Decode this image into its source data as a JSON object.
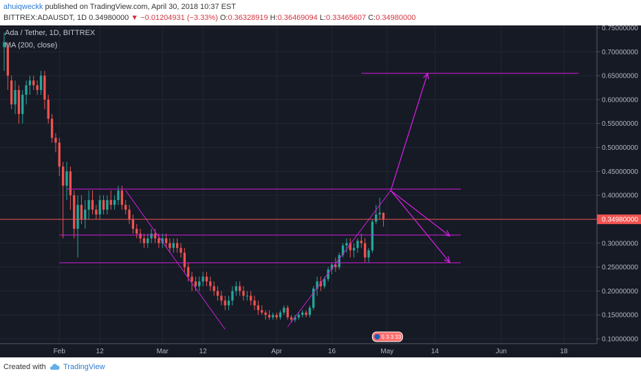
{
  "header": {
    "author": "ahuiqweckk",
    "published_text": "published on TradingView.com, April 30, 2018 10:37 EST",
    "symbol": "BITTREX:ADAUSDT, 1D",
    "last": "0.34980000",
    "change": "−0.01204931 (−3.33%)",
    "o_label": "O:",
    "o": "0.36328919",
    "h_label": "H:",
    "h": "0.36469094",
    "l_label": "L:",
    "l": "0.33465607",
    "c_label": "C:",
    "c": "0.34980000"
  },
  "legend": {
    "title": "Ada / Tether, 1D, BITTREX",
    "indicator": "MA (200, close)"
  },
  "price_badge": "0.34980000",
  "event_badge": "5 3 3 33",
  "footer": {
    "created_with": "Created with",
    "brand": "TradingView"
  },
  "colors": {
    "background": "#161a25",
    "up": "#26a69a",
    "down": "#ef5350",
    "drawing": "#d21ede",
    "price_line": "#ef5350"
  },
  "chart_data": {
    "type": "candlestick",
    "y_axis": {
      "ticks": [
        "0.75000000",
        "0.70000000",
        "0.65000000",
        "0.60000000",
        "0.55000000",
        "0.50000000",
        "0.45000000",
        "0.40000000",
        "0.35000000",
        "0.30000000",
        "0.25000000",
        "0.20000000",
        "0.15000000",
        "0.10000000"
      ],
      "ylim": [
        0.09,
        0.755
      ]
    },
    "x_axis": {
      "ticks": [
        {
          "label": "Feb",
          "date": "2018-02-01"
        },
        {
          "label": "12",
          "date": "2018-02-12"
        },
        {
          "label": "Mar",
          "date": "2018-03-01"
        },
        {
          "label": "12",
          "date": "2018-03-12"
        },
        {
          "label": "Apr",
          "date": "2018-04-01"
        },
        {
          "label": "16",
          "date": "2018-04-16"
        },
        {
          "label": "May",
          "date": "2018-05-01"
        },
        {
          "label": "14",
          "date": "2018-05-14"
        },
        {
          "label": "Jun",
          "date": "2018-06-01"
        },
        {
          "label": "18",
          "date": "2018-06-18"
        }
      ],
      "xlim": [
        "2018-01-17",
        "2018-06-27"
      ]
    },
    "candles": [
      {
        "d": "2018-01-17",
        "o": 0.71,
        "h": 0.74,
        "l": 0.66,
        "c": 0.72
      },
      {
        "d": "2018-01-18",
        "o": 0.71,
        "h": 0.72,
        "l": 0.62,
        "c": 0.65
      },
      {
        "d": "2018-01-19",
        "o": 0.64,
        "h": 0.65,
        "l": 0.58,
        "c": 0.59
      },
      {
        "d": "2018-01-20",
        "o": 0.59,
        "h": 0.64,
        "l": 0.57,
        "c": 0.62
      },
      {
        "d": "2018-01-21",
        "o": 0.62,
        "h": 0.63,
        "l": 0.55,
        "c": 0.57
      },
      {
        "d": "2018-01-22",
        "o": 0.57,
        "h": 0.62,
        "l": 0.55,
        "c": 0.61
      },
      {
        "d": "2018-01-23",
        "o": 0.61,
        "h": 0.64,
        "l": 0.59,
        "c": 0.63
      },
      {
        "d": "2018-01-24",
        "o": 0.63,
        "h": 0.65,
        "l": 0.61,
        "c": 0.64
      },
      {
        "d": "2018-01-25",
        "o": 0.64,
        "h": 0.65,
        "l": 0.62,
        "c": 0.63
      },
      {
        "d": "2018-01-26",
        "o": 0.63,
        "h": 0.64,
        "l": 0.61,
        "c": 0.62
      },
      {
        "d": "2018-01-27",
        "o": 0.62,
        "h": 0.66,
        "l": 0.61,
        "c": 0.65
      },
      {
        "d": "2018-01-28",
        "o": 0.65,
        "h": 0.66,
        "l": 0.58,
        "c": 0.6
      },
      {
        "d": "2018-01-29",
        "o": 0.6,
        "h": 0.61,
        "l": 0.55,
        "c": 0.56
      },
      {
        "d": "2018-01-30",
        "o": 0.56,
        "h": 0.57,
        "l": 0.51,
        "c": 0.52
      },
      {
        "d": "2018-01-31",
        "o": 0.52,
        "h": 0.53,
        "l": 0.49,
        "c": 0.51
      },
      {
        "d": "2018-02-01",
        "o": 0.51,
        "h": 0.52,
        "l": 0.44,
        "c": 0.46
      },
      {
        "d": "2018-02-02",
        "o": 0.46,
        "h": 0.47,
        "l": 0.31,
        "c": 0.42
      },
      {
        "d": "2018-02-03",
        "o": 0.42,
        "h": 0.47,
        "l": 0.39,
        "c": 0.45
      },
      {
        "d": "2018-02-04",
        "o": 0.45,
        "h": 0.46,
        "l": 0.37,
        "c": 0.4
      },
      {
        "d": "2018-02-05",
        "o": 0.4,
        "h": 0.41,
        "l": 0.31,
        "c": 0.33
      },
      {
        "d": "2018-02-06",
        "o": 0.33,
        "h": 0.4,
        "l": 0.27,
        "c": 0.38
      },
      {
        "d": "2018-02-07",
        "o": 0.38,
        "h": 0.4,
        "l": 0.34,
        "c": 0.35
      },
      {
        "d": "2018-02-08",
        "o": 0.35,
        "h": 0.39,
        "l": 0.33,
        "c": 0.37
      },
      {
        "d": "2018-02-09",
        "o": 0.37,
        "h": 0.41,
        "l": 0.35,
        "c": 0.39
      },
      {
        "d": "2018-02-10",
        "o": 0.39,
        "h": 0.41,
        "l": 0.36,
        "c": 0.37
      },
      {
        "d": "2018-02-11",
        "o": 0.37,
        "h": 0.38,
        "l": 0.35,
        "c": 0.36
      },
      {
        "d": "2018-02-12",
        "o": 0.36,
        "h": 0.4,
        "l": 0.35,
        "c": 0.39
      },
      {
        "d": "2018-02-13",
        "o": 0.39,
        "h": 0.4,
        "l": 0.36,
        "c": 0.37
      },
      {
        "d": "2018-02-14",
        "o": 0.37,
        "h": 0.4,
        "l": 0.36,
        "c": 0.39
      },
      {
        "d": "2018-02-15",
        "o": 0.39,
        "h": 0.41,
        "l": 0.37,
        "c": 0.38
      },
      {
        "d": "2018-02-16",
        "o": 0.38,
        "h": 0.4,
        "l": 0.37,
        "c": 0.39
      },
      {
        "d": "2018-02-17",
        "o": 0.39,
        "h": 0.42,
        "l": 0.38,
        "c": 0.41
      },
      {
        "d": "2018-02-18",
        "o": 0.41,
        "h": 0.42,
        "l": 0.37,
        "c": 0.38
      },
      {
        "d": "2018-02-19",
        "o": 0.38,
        "h": 0.39,
        "l": 0.36,
        "c": 0.37
      },
      {
        "d": "2018-02-20",
        "o": 0.37,
        "h": 0.38,
        "l": 0.34,
        "c": 0.35
      },
      {
        "d": "2018-02-21",
        "o": 0.35,
        "h": 0.36,
        "l": 0.32,
        "c": 0.33
      },
      {
        "d": "2018-02-22",
        "o": 0.33,
        "h": 0.34,
        "l": 0.31,
        "c": 0.32
      },
      {
        "d": "2018-02-23",
        "o": 0.32,
        "h": 0.33,
        "l": 0.3,
        "c": 0.31
      },
      {
        "d": "2018-02-24",
        "o": 0.31,
        "h": 0.32,
        "l": 0.29,
        "c": 0.3
      },
      {
        "d": "2018-02-25",
        "o": 0.3,
        "h": 0.32,
        "l": 0.29,
        "c": 0.31
      },
      {
        "d": "2018-02-26",
        "o": 0.31,
        "h": 0.33,
        "l": 0.3,
        "c": 0.32
      },
      {
        "d": "2018-02-27",
        "o": 0.32,
        "h": 0.33,
        "l": 0.3,
        "c": 0.31
      },
      {
        "d": "2018-02-28",
        "o": 0.31,
        "h": 0.32,
        "l": 0.29,
        "c": 0.3
      },
      {
        "d": "2018-03-01",
        "o": 0.3,
        "h": 0.32,
        "l": 0.29,
        "c": 0.31
      },
      {
        "d": "2018-03-02",
        "o": 0.31,
        "h": 0.32,
        "l": 0.29,
        "c": 0.3
      },
      {
        "d": "2018-03-03",
        "o": 0.3,
        "h": 0.31,
        "l": 0.28,
        "c": 0.29
      },
      {
        "d": "2018-03-04",
        "o": 0.29,
        "h": 0.31,
        "l": 0.28,
        "c": 0.3
      },
      {
        "d": "2018-03-05",
        "o": 0.3,
        "h": 0.31,
        "l": 0.28,
        "c": 0.29
      },
      {
        "d": "2018-03-06",
        "o": 0.29,
        "h": 0.3,
        "l": 0.27,
        "c": 0.28
      },
      {
        "d": "2018-03-07",
        "o": 0.28,
        "h": 0.29,
        "l": 0.24,
        "c": 0.25
      },
      {
        "d": "2018-03-08",
        "o": 0.25,
        "h": 0.26,
        "l": 0.22,
        "c": 0.23
      },
      {
        "d": "2018-03-09",
        "o": 0.23,
        "h": 0.24,
        "l": 0.2,
        "c": 0.22
      },
      {
        "d": "2018-03-10",
        "o": 0.22,
        "h": 0.23,
        "l": 0.2,
        "c": 0.21
      },
      {
        "d": "2018-03-11",
        "o": 0.21,
        "h": 0.23,
        "l": 0.2,
        "c": 0.22
      },
      {
        "d": "2018-03-12",
        "o": 0.22,
        "h": 0.24,
        "l": 0.21,
        "c": 0.23
      },
      {
        "d": "2018-03-13",
        "o": 0.23,
        "h": 0.24,
        "l": 0.21,
        "c": 0.22
      },
      {
        "d": "2018-03-14",
        "o": 0.22,
        "h": 0.23,
        "l": 0.2,
        "c": 0.21
      },
      {
        "d": "2018-03-15",
        "o": 0.21,
        "h": 0.22,
        "l": 0.19,
        "c": 0.2
      },
      {
        "d": "2018-03-16",
        "o": 0.2,
        "h": 0.21,
        "l": 0.18,
        "c": 0.19
      },
      {
        "d": "2018-03-17",
        "o": 0.19,
        "h": 0.2,
        "l": 0.17,
        "c": 0.18
      },
      {
        "d": "2018-03-18",
        "o": 0.18,
        "h": 0.19,
        "l": 0.16,
        "c": 0.17
      },
      {
        "d": "2018-03-19",
        "o": 0.17,
        "h": 0.19,
        "l": 0.16,
        "c": 0.18
      },
      {
        "d": "2018-03-20",
        "o": 0.18,
        "h": 0.21,
        "l": 0.17,
        "c": 0.2
      },
      {
        "d": "2018-03-21",
        "o": 0.2,
        "h": 0.22,
        "l": 0.19,
        "c": 0.21
      },
      {
        "d": "2018-03-22",
        "o": 0.21,
        "h": 0.22,
        "l": 0.19,
        "c": 0.2
      },
      {
        "d": "2018-03-23",
        "o": 0.2,
        "h": 0.21,
        "l": 0.18,
        "c": 0.19
      },
      {
        "d": "2018-03-24",
        "o": 0.19,
        "h": 0.2,
        "l": 0.18,
        "c": 0.19
      },
      {
        "d": "2018-03-25",
        "o": 0.19,
        "h": 0.2,
        "l": 0.17,
        "c": 0.18
      },
      {
        "d": "2018-03-26",
        "o": 0.18,
        "h": 0.19,
        "l": 0.16,
        "c": 0.17
      },
      {
        "d": "2018-03-27",
        "o": 0.17,
        "h": 0.18,
        "l": 0.15,
        "c": 0.16
      },
      {
        "d": "2018-03-28",
        "o": 0.16,
        "h": 0.17,
        "l": 0.15,
        "c": 0.155
      },
      {
        "d": "2018-03-29",
        "o": 0.155,
        "h": 0.16,
        "l": 0.14,
        "c": 0.15
      },
      {
        "d": "2018-03-30",
        "o": 0.15,
        "h": 0.16,
        "l": 0.14,
        "c": 0.145
      },
      {
        "d": "2018-03-31",
        "o": 0.145,
        "h": 0.155,
        "l": 0.14,
        "c": 0.15
      },
      {
        "d": "2018-04-01",
        "o": 0.15,
        "h": 0.155,
        "l": 0.14,
        "c": 0.145
      },
      {
        "d": "2018-04-02",
        "o": 0.145,
        "h": 0.16,
        "l": 0.14,
        "c": 0.155
      },
      {
        "d": "2018-04-03",
        "o": 0.155,
        "h": 0.17,
        "l": 0.15,
        "c": 0.165
      },
      {
        "d": "2018-04-04",
        "o": 0.165,
        "h": 0.17,
        "l": 0.14,
        "c": 0.145
      },
      {
        "d": "2018-04-05",
        "o": 0.145,
        "h": 0.15,
        "l": 0.135,
        "c": 0.14
      },
      {
        "d": "2018-04-06",
        "o": 0.14,
        "h": 0.15,
        "l": 0.135,
        "c": 0.145
      },
      {
        "d": "2018-04-07",
        "o": 0.145,
        "h": 0.155,
        "l": 0.14,
        "c": 0.15
      },
      {
        "d": "2018-04-08",
        "o": 0.15,
        "h": 0.16,
        "l": 0.145,
        "c": 0.155
      },
      {
        "d": "2018-04-09",
        "o": 0.155,
        "h": 0.16,
        "l": 0.145,
        "c": 0.15
      },
      {
        "d": "2018-04-10",
        "o": 0.15,
        "h": 0.17,
        "l": 0.145,
        "c": 0.165
      },
      {
        "d": "2018-04-11",
        "o": 0.165,
        "h": 0.21,
        "l": 0.16,
        "c": 0.205
      },
      {
        "d": "2018-04-12",
        "o": 0.205,
        "h": 0.23,
        "l": 0.19,
        "c": 0.22
      },
      {
        "d": "2018-04-13",
        "o": 0.22,
        "h": 0.23,
        "l": 0.2,
        "c": 0.21
      },
      {
        "d": "2018-04-14",
        "o": 0.21,
        "h": 0.23,
        "l": 0.205,
        "c": 0.225
      },
      {
        "d": "2018-04-15",
        "o": 0.225,
        "h": 0.25,
        "l": 0.22,
        "c": 0.245
      },
      {
        "d": "2018-04-16",
        "o": 0.245,
        "h": 0.26,
        "l": 0.235,
        "c": 0.255
      },
      {
        "d": "2018-04-17",
        "o": 0.255,
        "h": 0.27,
        "l": 0.24,
        "c": 0.25
      },
      {
        "d": "2018-04-18",
        "o": 0.25,
        "h": 0.28,
        "l": 0.245,
        "c": 0.275
      },
      {
        "d": "2018-04-19",
        "o": 0.275,
        "h": 0.3,
        "l": 0.27,
        "c": 0.295
      },
      {
        "d": "2018-04-20",
        "o": 0.295,
        "h": 0.31,
        "l": 0.28,
        "c": 0.3
      },
      {
        "d": "2018-04-21",
        "o": 0.3,
        "h": 0.31,
        "l": 0.27,
        "c": 0.285
      },
      {
        "d": "2018-04-22",
        "o": 0.285,
        "h": 0.3,
        "l": 0.27,
        "c": 0.29
      },
      {
        "d": "2018-04-23",
        "o": 0.29,
        "h": 0.31,
        "l": 0.28,
        "c": 0.305
      },
      {
        "d": "2018-04-24",
        "o": 0.305,
        "h": 0.32,
        "l": 0.29,
        "c": 0.3
      },
      {
        "d": "2018-04-25",
        "o": 0.3,
        "h": 0.31,
        "l": 0.26,
        "c": 0.27
      },
      {
        "d": "2018-04-26",
        "o": 0.27,
        "h": 0.29,
        "l": 0.26,
        "c": 0.285
      },
      {
        "d": "2018-04-27",
        "o": 0.285,
        "h": 0.35,
        "l": 0.28,
        "c": 0.345
      },
      {
        "d": "2018-04-28",
        "o": 0.345,
        "h": 0.38,
        "l": 0.34,
        "c": 0.36
      },
      {
        "d": "2018-04-29",
        "o": 0.36,
        "h": 0.395,
        "l": 0.35,
        "c": 0.3633
      },
      {
        "d": "2018-04-30",
        "o": 0.3633,
        "h": 0.3647,
        "l": 0.3347,
        "c": 0.3498
      }
    ],
    "drawings": {
      "horizontal_lines": [
        {
          "from": "2018-02-03",
          "to": "2018-05-21",
          "y": 0.413
        },
        {
          "from": "2018-02-01",
          "to": "2018-05-21",
          "y": 0.317
        },
        {
          "from": "2018-02-01",
          "to": "2018-05-21",
          "y": 0.259
        },
        {
          "from": "2018-04-24",
          "to": "2018-06-22",
          "y": 0.655
        }
      ],
      "trend_lines": [
        {
          "from": [
            "2018-02-19",
            0.41
          ],
          "to": [
            "2018-03-18",
            0.12
          ]
        },
        {
          "from": [
            "2018-04-04",
            0.125
          ],
          "to": [
            "2018-05-02",
            0.41
          ]
        }
      ],
      "arrows": [
        {
          "from": [
            "2018-05-02",
            0.41
          ],
          "to": [
            "2018-05-12",
            0.655
          ]
        },
        {
          "from": [
            "2018-05-02",
            0.41
          ],
          "to": [
            "2018-05-18",
            0.315
          ]
        },
        {
          "from": [
            "2018-05-02",
            0.41
          ],
          "to": [
            "2018-05-18",
            0.26
          ]
        }
      ]
    }
  }
}
